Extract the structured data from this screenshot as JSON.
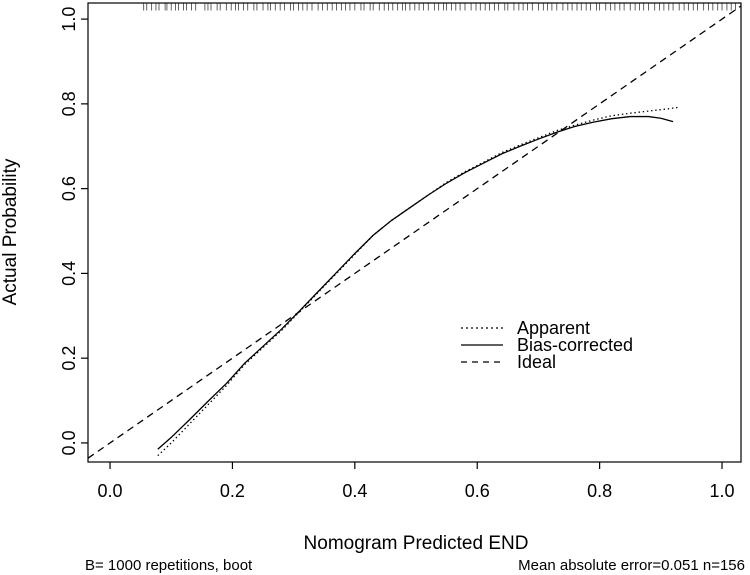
{
  "figure": {
    "background": "#ffffff",
    "foreground": "#000000"
  },
  "chart_data": {
    "type": "line",
    "title": "",
    "xlabel": "Nomogram Predicted END",
    "ylabel": "Actual Probability",
    "xlim": [
      -0.036,
      1.031
    ],
    "ylim": [
      -0.045,
      1.038
    ],
    "x_ticks": [
      0.0,
      0.2,
      0.4,
      0.6,
      0.8,
      1.0
    ],
    "y_ticks": [
      0.0,
      0.2,
      0.4,
      0.6,
      0.8,
      1.0
    ],
    "x_tick_labels": [
      "0.0",
      "0.2",
      "0.4",
      "0.6",
      "0.8",
      "1.0"
    ],
    "y_tick_labels": [
      "0.0",
      "0.2",
      "0.4",
      "0.6",
      "0.8",
      "1.0"
    ],
    "grid": false,
    "legend": {
      "position": "right-middle",
      "entries": [
        {
          "label": "Apparent",
          "style": "dotted"
        },
        {
          "label": "Bias-corrected",
          "style": "solid"
        },
        {
          "label": "Ideal",
          "style": "dashed"
        }
      ]
    },
    "series": [
      {
        "name": "Apparent",
        "style": "dotted",
        "points": [
          [
            0.078,
            -0.03
          ],
          [
            0.1,
            0.0
          ],
          [
            0.13,
            0.045
          ],
          [
            0.16,
            0.09
          ],
          [
            0.19,
            0.135
          ],
          [
            0.22,
            0.185
          ],
          [
            0.25,
            0.225
          ],
          [
            0.28,
            0.265
          ],
          [
            0.31,
            0.31
          ],
          [
            0.34,
            0.355
          ],
          [
            0.37,
            0.4
          ],
          [
            0.4,
            0.445
          ],
          [
            0.43,
            0.49
          ],
          [
            0.46,
            0.525
          ],
          [
            0.49,
            0.555
          ],
          [
            0.52,
            0.585
          ],
          [
            0.55,
            0.615
          ],
          [
            0.58,
            0.64
          ],
          [
            0.61,
            0.662
          ],
          [
            0.64,
            0.685
          ],
          [
            0.67,
            0.703
          ],
          [
            0.7,
            0.72
          ],
          [
            0.73,
            0.737
          ],
          [
            0.76,
            0.75
          ],
          [
            0.79,
            0.762
          ],
          [
            0.82,
            0.772
          ],
          [
            0.85,
            0.778
          ],
          [
            0.88,
            0.783
          ],
          [
            0.91,
            0.788
          ],
          [
            0.93,
            0.792
          ]
        ]
      },
      {
        "name": "Bias-corrected",
        "style": "solid",
        "points": [
          [
            0.078,
            -0.015
          ],
          [
            0.1,
            0.013
          ],
          [
            0.13,
            0.055
          ],
          [
            0.16,
            0.098
          ],
          [
            0.19,
            0.14
          ],
          [
            0.22,
            0.188
          ],
          [
            0.25,
            0.228
          ],
          [
            0.28,
            0.268
          ],
          [
            0.31,
            0.312
          ],
          [
            0.34,
            0.357
          ],
          [
            0.37,
            0.402
          ],
          [
            0.4,
            0.447
          ],
          [
            0.43,
            0.49
          ],
          [
            0.46,
            0.525
          ],
          [
            0.49,
            0.555
          ],
          [
            0.52,
            0.585
          ],
          [
            0.55,
            0.613
          ],
          [
            0.58,
            0.638
          ],
          [
            0.61,
            0.66
          ],
          [
            0.64,
            0.682
          ],
          [
            0.67,
            0.7
          ],
          [
            0.7,
            0.717
          ],
          [
            0.73,
            0.733
          ],
          [
            0.76,
            0.747
          ],
          [
            0.79,
            0.757
          ],
          [
            0.82,
            0.765
          ],
          [
            0.85,
            0.77
          ],
          [
            0.88,
            0.77
          ],
          [
            0.9,
            0.766
          ],
          [
            0.92,
            0.758
          ]
        ]
      },
      {
        "name": "Ideal",
        "style": "dashed",
        "points": [
          [
            -0.036,
            -0.036
          ],
          [
            1.031,
            1.031
          ]
        ]
      }
    ],
    "rug_x": [
      0.055,
      0.06,
      0.068,
      0.075,
      0.08,
      0.09,
      0.093,
      0.1,
      0.107,
      0.112,
      0.12,
      0.125,
      0.133,
      0.14,
      0.155,
      0.16,
      0.165,
      0.175,
      0.18,
      0.19,
      0.198,
      0.205,
      0.21,
      0.218,
      0.225,
      0.235,
      0.24,
      0.25,
      0.258,
      0.262,
      0.27,
      0.278,
      0.285,
      0.295,
      0.3,
      0.308,
      0.315,
      0.322,
      0.33,
      0.34,
      0.347,
      0.355,
      0.363,
      0.37,
      0.378,
      0.385,
      0.392,
      0.4,
      0.41,
      0.415,
      0.425,
      0.43,
      0.44,
      0.448,
      0.455,
      0.462,
      0.47,
      0.478,
      0.483,
      0.49,
      0.498,
      0.505,
      0.512,
      0.52,
      0.53,
      0.537,
      0.545,
      0.55,
      0.558,
      0.565,
      0.572,
      0.58,
      0.59,
      0.598,
      0.605,
      0.613,
      0.62,
      0.628,
      0.635,
      0.645,
      0.65,
      0.66,
      0.668,
      0.675,
      0.682,
      0.69,
      0.7,
      0.708,
      0.715,
      0.722,
      0.73,
      0.74,
      0.748,
      0.755,
      0.763,
      0.77,
      0.778,
      0.785,
      0.795,
      0.8,
      0.81,
      0.818,
      0.825,
      0.833,
      0.84,
      0.85,
      0.858,
      0.865,
      0.872,
      0.88,
      0.89,
      0.898,
      0.905,
      0.913,
      0.92,
      0.93,
      0.938,
      0.945,
      0.953,
      0.96,
      0.97,
      0.978,
      0.985,
      0.993,
      1.0,
      1.008,
      1.015,
      1.022
    ],
    "annotations": {
      "bottom_left": "B= 1000 repetitions, boot",
      "bottom_right": "Mean absolute error=0.051 n=156"
    }
  }
}
